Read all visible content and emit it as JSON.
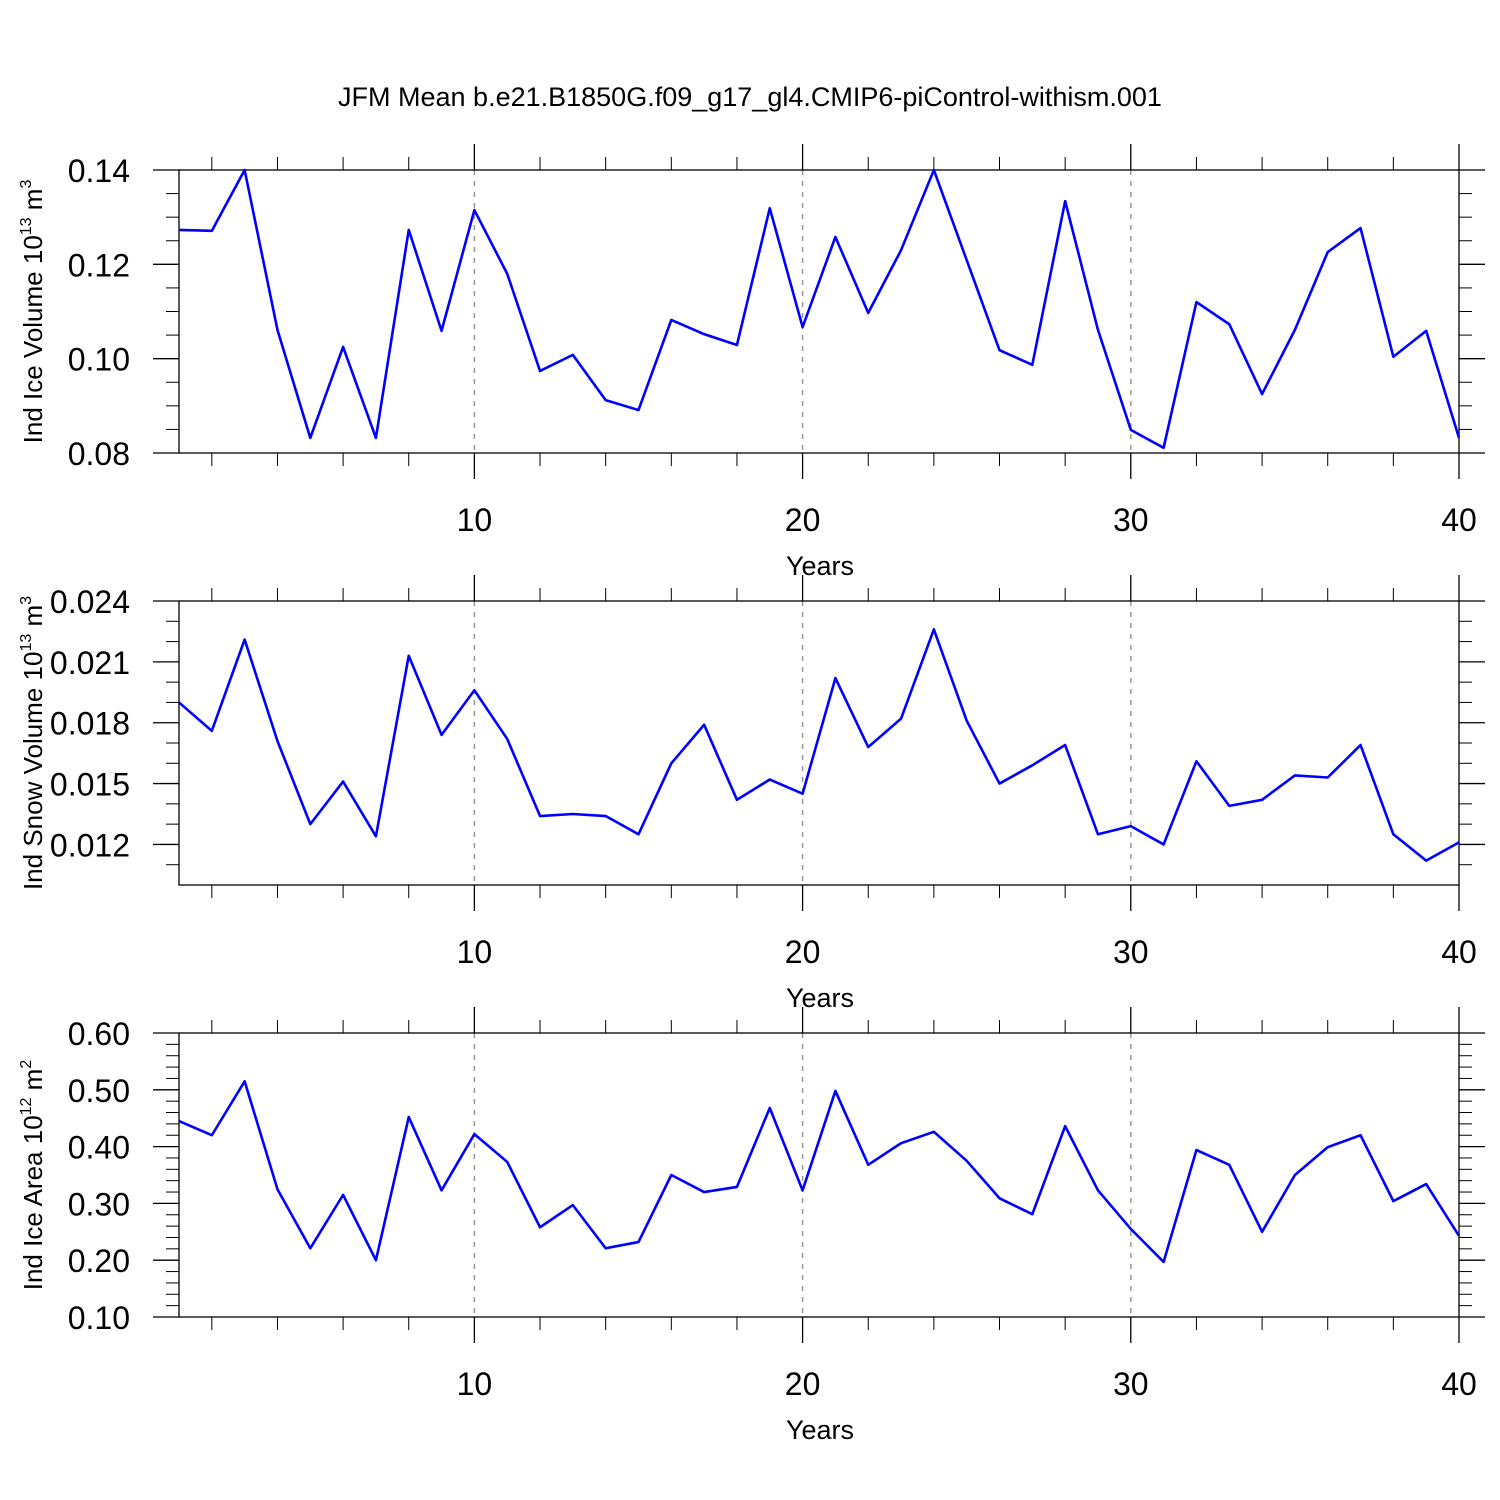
{
  "title": "JFM Mean b.e21.B1850G.f09_g17_gl4.CMIP6-piControl-withism.001",
  "chart_data": [
    {
      "type": "line",
      "ylabel": [
        "Ind Ice Volume 10",
        "13",
        " m",
        "3"
      ],
      "xlabel": "Years",
      "x": [
        1,
        2,
        3,
        4,
        5,
        6,
        7,
        8,
        9,
        10,
        11,
        12,
        13,
        14,
        15,
        16,
        17,
        18,
        19,
        20,
        21,
        22,
        23,
        24,
        25,
        26,
        27,
        28,
        29,
        30,
        31,
        32,
        33,
        34,
        35,
        36,
        37,
        38,
        39,
        40
      ],
      "values": [
        0.1273,
        0.1271,
        0.14,
        0.1061,
        0.0832,
        0.1025,
        0.0832,
        0.1273,
        0.1059,
        0.1315,
        0.118,
        0.0974,
        0.1008,
        0.0912,
        0.0891,
        0.1082,
        0.1052,
        0.1029,
        0.1319,
        0.1067,
        0.1258,
        0.1097,
        0.123,
        0.14,
        0.1209,
        0.1018,
        0.0987,
        0.1334,
        0.1061,
        0.0849,
        0.0811,
        0.112,
        0.1073,
        0.0925,
        0.1061,
        0.1226,
        0.1277,
        0.1004,
        0.1059,
        0.0832
      ],
      "color": "#0000ff",
      "xlim": [
        1,
        40
      ],
      "xticks": [
        10,
        20,
        30,
        40
      ],
      "xminorticks": [
        2,
        4,
        6,
        8,
        12,
        14,
        16,
        18,
        22,
        24,
        26,
        28,
        32,
        34,
        36,
        38
      ],
      "ylim": [
        0.08,
        0.14
      ],
      "yticks": [
        0.08,
        {
          "value": 0.1,
          "label": "0.10"
        },
        0.12,
        0.14
      ],
      "yminorticks": [
        0.085,
        0.09,
        0.095,
        0.105,
        0.11,
        0.115,
        0.125,
        0.13,
        0.135
      ],
      "xgrid": true
    },
    {
      "type": "line",
      "ylabel": [
        "Ind Snow Volume 10",
        "13",
        " m",
        "3"
      ],
      "xlabel": "Years",
      "x": [
        1,
        2,
        3,
        4,
        5,
        6,
        7,
        8,
        9,
        10,
        11,
        12,
        13,
        14,
        15,
        16,
        17,
        18,
        19,
        20,
        21,
        22,
        23,
        24,
        25,
        26,
        27,
        28,
        29,
        30,
        31,
        32,
        33,
        34,
        35,
        36,
        37,
        38,
        39,
        40
      ],
      "values": [
        0.019,
        0.0176,
        0.0221,
        0.0171,
        0.013,
        0.0151,
        0.0124,
        0.0213,
        0.0174,
        0.0196,
        0.0172,
        0.0134,
        0.0135,
        0.0134,
        0.0125,
        0.016,
        0.0179,
        0.0142,
        0.0152,
        0.0145,
        0.0202,
        0.0168,
        0.0182,
        0.0226,
        0.0181,
        0.015,
        0.0159,
        0.0169,
        0.0125,
        0.0129,
        0.012,
        0.0161,
        0.0139,
        0.0142,
        0.0154,
        0.0153,
        0.0169,
        0.0125,
        0.0112,
        0.0121
      ],
      "color": "#0000ff",
      "xlim": [
        1,
        40
      ],
      "xticks": [
        10,
        20,
        30,
        40
      ],
      "xminorticks": [
        2,
        4,
        6,
        8,
        12,
        14,
        16,
        18,
        22,
        24,
        26,
        28,
        32,
        34,
        36,
        38
      ],
      "ylim": [
        0.01,
        0.024
      ],
      "yticks": [
        0.012,
        0.015,
        0.018,
        0.021,
        0.024
      ],
      "yminorticks": [
        0.011,
        0.013,
        0.014,
        0.016,
        0.017,
        0.019,
        0.02,
        0.022,
        0.023
      ],
      "xgrid": true
    },
    {
      "type": "line",
      "ylabel": [
        "Ind Ice Area 10",
        "12",
        " m",
        "2"
      ],
      "xlabel": "Years",
      "x": [
        1,
        2,
        3,
        4,
        5,
        6,
        7,
        8,
        9,
        10,
        11,
        12,
        13,
        14,
        15,
        16,
        17,
        18,
        19,
        20,
        21,
        22,
        23,
        24,
        25,
        26,
        27,
        28,
        29,
        30,
        31,
        32,
        33,
        34,
        35,
        36,
        37,
        38,
        39,
        40
      ],
      "values": [
        0.445,
        0.42,
        0.515,
        0.325,
        0.221,
        0.315,
        0.2,
        0.452,
        0.323,
        0.422,
        0.373,
        0.258,
        0.297,
        0.221,
        0.232,
        0.35,
        0.32,
        0.329,
        0.468,
        0.323,
        0.498,
        0.368,
        0.406,
        0.426,
        0.375,
        0.309,
        0.281,
        0.436,
        0.323,
        0.255,
        0.197,
        0.394,
        0.368,
        0.25,
        0.35,
        0.399,
        0.42,
        0.304,
        0.334,
        0.243
      ],
      "color": "#0000ff",
      "xlim": [
        1,
        40
      ],
      "xticks": [
        10,
        20,
        30,
        40
      ],
      "xminorticks": [
        2,
        4,
        6,
        8,
        12,
        14,
        16,
        18,
        22,
        24,
        26,
        28,
        32,
        34,
        36,
        38
      ],
      "ylim": [
        0.1,
        0.6
      ],
      "yticks": [
        {
          "value": 0.1,
          "label": "0.10"
        },
        {
          "value": 0.2,
          "label": "0.20"
        },
        {
          "value": 0.3,
          "label": "0.30"
        },
        {
          "value": 0.4,
          "label": "0.40"
        },
        {
          "value": 0.5,
          "label": "0.50"
        },
        {
          "value": 0.6,
          "label": "0.60"
        }
      ],
      "yminorticks": [
        0.12,
        0.14,
        0.16,
        0.18,
        0.22,
        0.24,
        0.26,
        0.28,
        0.32,
        0.34,
        0.36,
        0.38,
        0.42,
        0.44,
        0.46,
        0.48,
        0.52,
        0.54,
        0.56,
        0.58
      ],
      "xgrid": true
    }
  ]
}
